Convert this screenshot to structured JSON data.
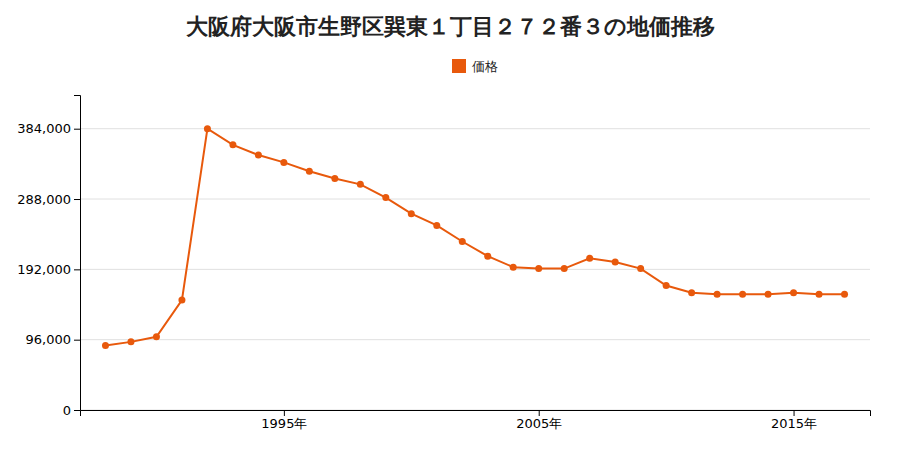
{
  "chart_data": {
    "type": "line",
    "title": "大阪府大阪市生野区巽東１丁目２７２番３の地価推移",
    "x": [
      1988,
      1989,
      1990,
      1991,
      1992,
      1993,
      1994,
      1995,
      1996,
      1997,
      1998,
      1999,
      2000,
      2001,
      2002,
      2003,
      2004,
      2005,
      2006,
      2007,
      2008,
      2009,
      2010,
      2011,
      2012,
      2013,
      2014,
      2015,
      2016,
      2017
    ],
    "series": [
      {
        "name": "価格",
        "color": "#e8590c",
        "marker": "circle",
        "values": [
          88000,
          93000,
          100000,
          150000,
          384000,
          362000,
          348000,
          338000,
          326000,
          316000,
          308000,
          290000,
          268000,
          252000,
          230000,
          210000,
          195000,
          193000,
          193000,
          207000,
          202000,
          193000,
          170000,
          160000,
          158000,
          158000,
          158000,
          160000,
          158000,
          158000
        ]
      }
    ],
    "xlim": [
      1987,
      2018
    ],
    "xticks": [
      {
        "value": 1995,
        "label": "1995年"
      },
      {
        "value": 2005,
        "label": "2005年"
      },
      {
        "value": 2015,
        "label": "2015年"
      }
    ],
    "ylim": [
      0,
      430000
    ],
    "yticks": [
      0,
      {
        "value": 96000,
        "label": "96,000"
      },
      {
        "value": 192000,
        "label": "192,000"
      },
      {
        "value": 288000,
        "label": "288,000"
      },
      {
        "value": 384000,
        "label": "384,000"
      }
    ],
    "grid": true,
    "legend": "top"
  }
}
